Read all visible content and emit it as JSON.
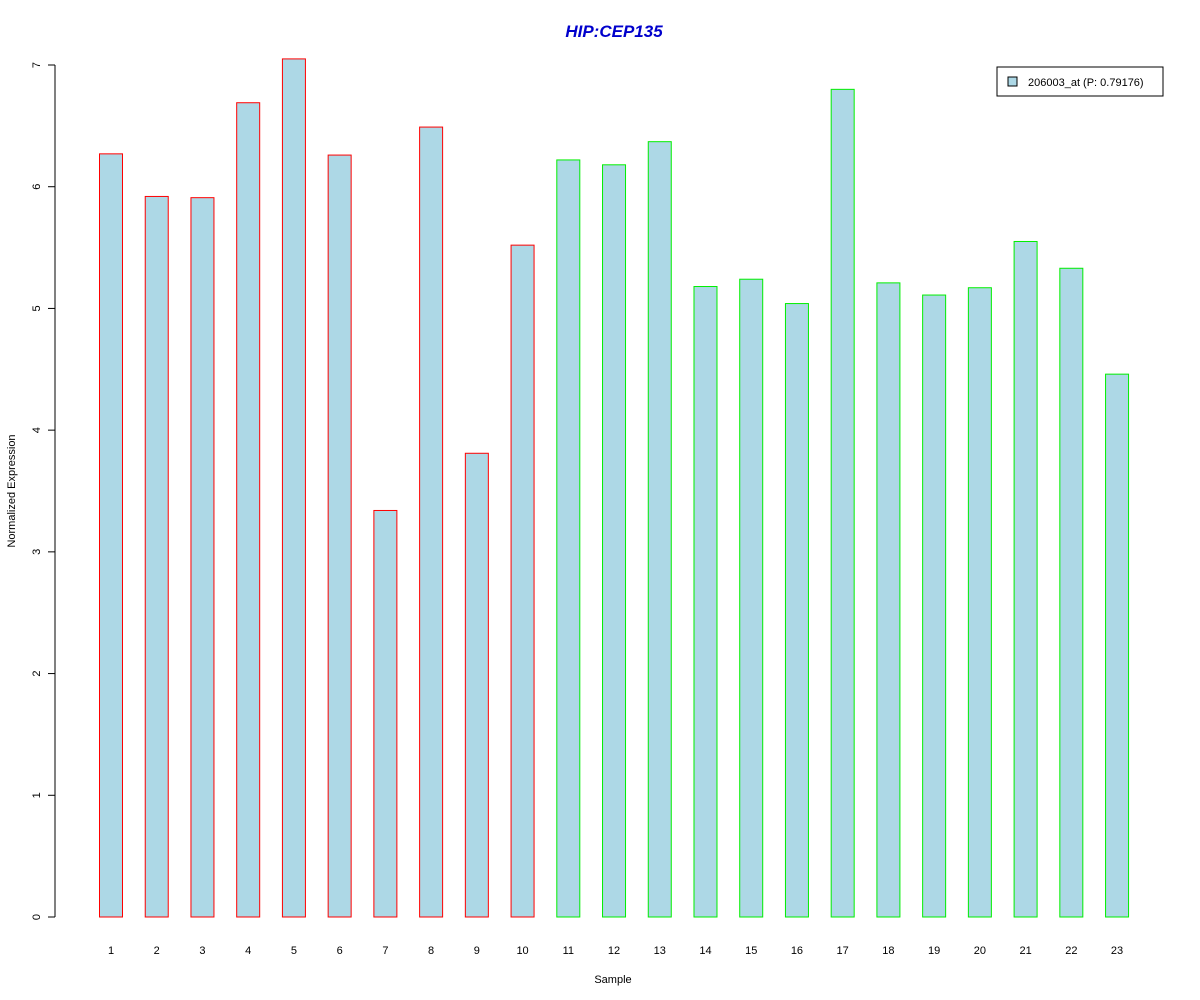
{
  "chart_data": {
    "type": "bar",
    "title": "HIP:CEP135",
    "xlabel": "Sample",
    "ylabel": "Normalized Expression",
    "categories": [
      "1",
      "2",
      "3",
      "4",
      "5",
      "6",
      "7",
      "8",
      "9",
      "10",
      "11",
      "12",
      "13",
      "14",
      "15",
      "16",
      "17",
      "18",
      "19",
      "20",
      "21",
      "22",
      "23"
    ],
    "values": [
      6.27,
      5.92,
      5.91,
      6.69,
      7.05,
      6.26,
      3.34,
      6.49,
      3.81,
      5.52,
      6.22,
      6.18,
      6.37,
      5.18,
      5.24,
      5.04,
      6.8,
      5.21,
      5.11,
      5.17,
      5.55,
      5.33,
      4.46
    ],
    "groups": [
      1,
      1,
      1,
      1,
      1,
      1,
      1,
      1,
      1,
      1,
      2,
      2,
      2,
      2,
      2,
      2,
      2,
      2,
      2,
      2,
      2,
      2,
      2
    ],
    "ylim": [
      0,
      7
    ],
    "yticks": [
      "0",
      "1",
      "2",
      "3",
      "4",
      "5",
      "6",
      "7"
    ],
    "grid": false,
    "legend": {
      "position": "top-right",
      "entries": [
        "206003_at (P: 0.79176)"
      ]
    },
    "colors": {
      "title": "#0000cc",
      "fill": "#add8e6",
      "group1_border": "#ff0000",
      "group2_border": "#00ee00",
      "axis": "#000000"
    }
  }
}
